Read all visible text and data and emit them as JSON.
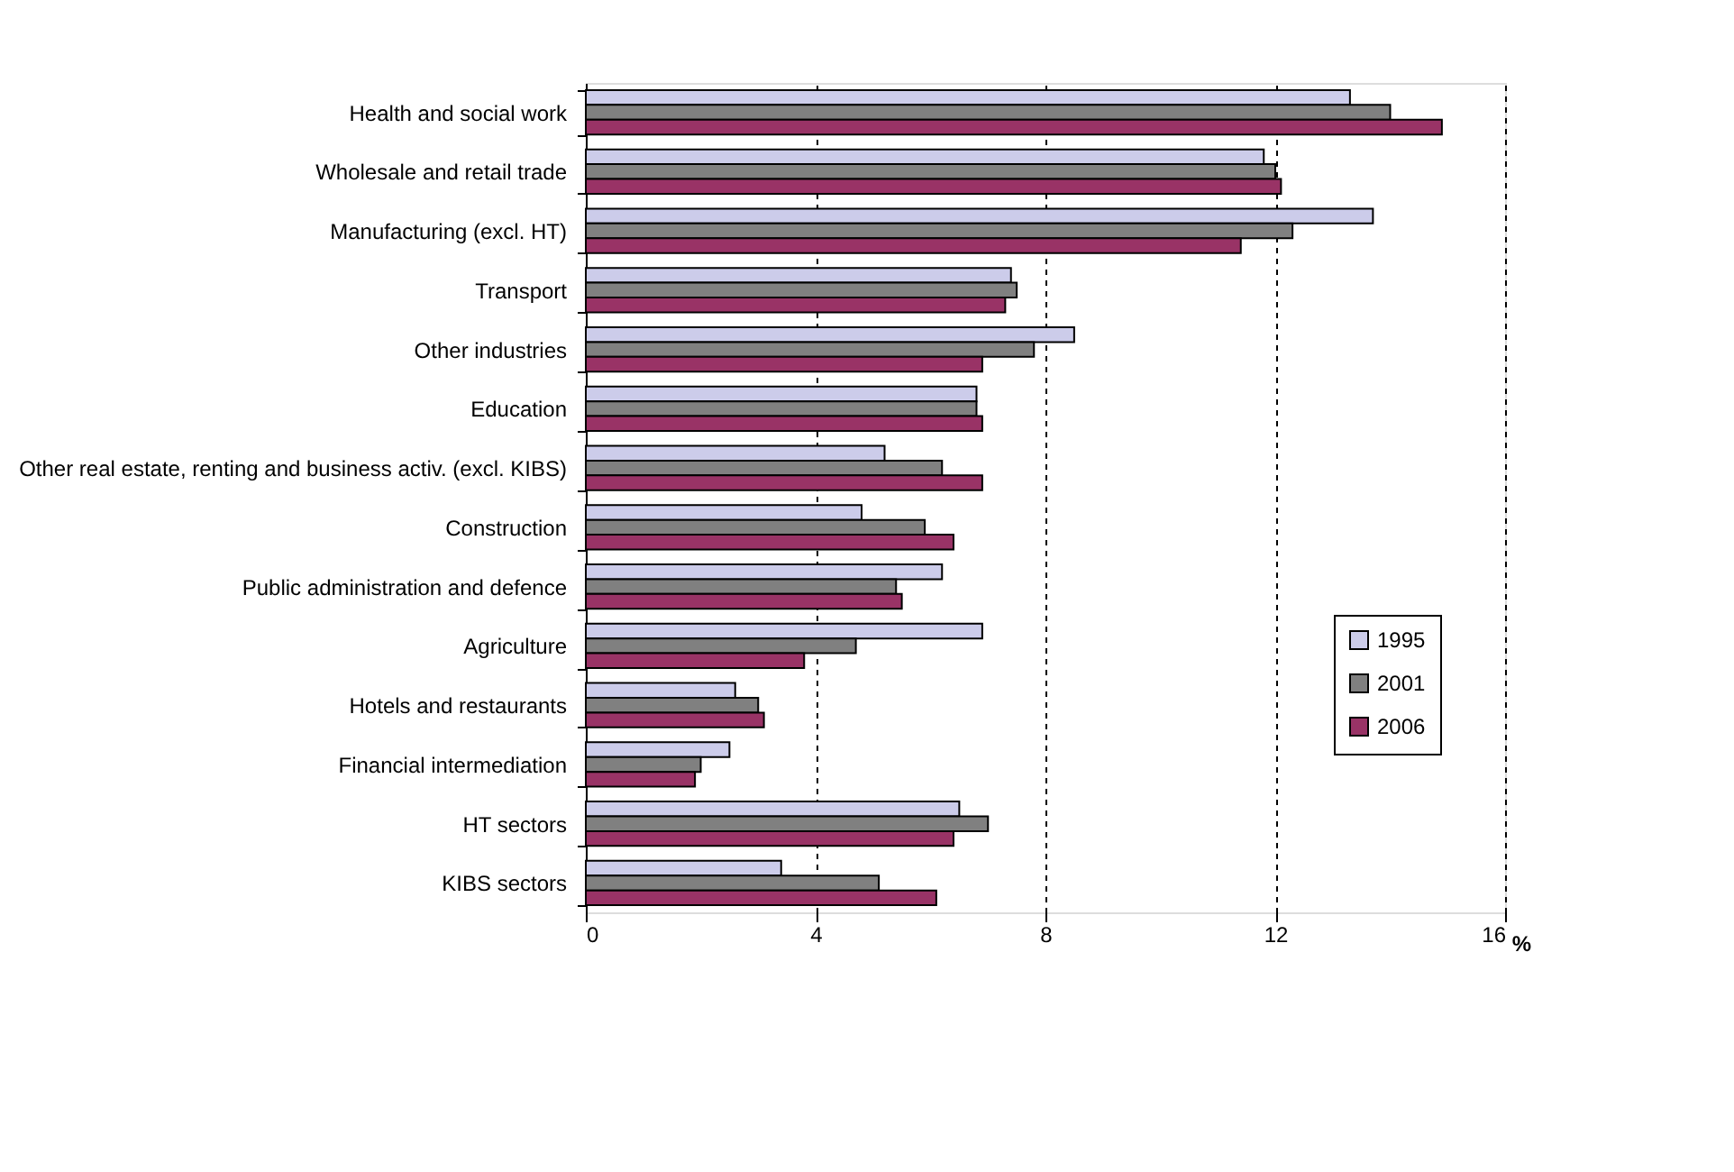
{
  "chart_data": {
    "type": "bar",
    "orientation": "horizontal",
    "xlabel": "%",
    "categories": [
      "Health and social work",
      "Wholesale and retail trade",
      "Manufacturing (excl. HT)",
      "Transport",
      "Other industries",
      "Education",
      "Other real estate, renting and business activ. (excl. KIBS)",
      "Construction",
      "Public administration and defence",
      "Agriculture",
      "Hotels and restaurants",
      "Financial intermediation",
      "HT sectors",
      "KIBS sectors"
    ],
    "series": [
      {
        "name": "1995",
        "color": "#ccccea",
        "values": [
          13.3,
          11.8,
          13.7,
          7.4,
          8.5,
          6.8,
          5.2,
          4.8,
          6.2,
          6.9,
          2.6,
          2.5,
          6.5,
          3.4
        ]
      },
      {
        "name": "2001",
        "color": "#808080",
        "values": [
          14.0,
          12.0,
          12.3,
          7.5,
          7.8,
          6.8,
          6.2,
          5.9,
          5.4,
          4.7,
          3.0,
          2.0,
          7.0,
          5.1
        ]
      },
      {
        "name": "2006",
        "color": "#993366",
        "values": [
          14.9,
          12.1,
          11.4,
          7.3,
          6.9,
          6.9,
          6.9,
          6.4,
          5.5,
          3.8,
          3.1,
          1.9,
          6.4,
          6.1
        ]
      }
    ],
    "xlim": [
      0,
      16
    ],
    "xticks": [
      0,
      4,
      8,
      12,
      16
    ],
    "grid": "x",
    "line_style": "dashed",
    "legend": "right"
  }
}
